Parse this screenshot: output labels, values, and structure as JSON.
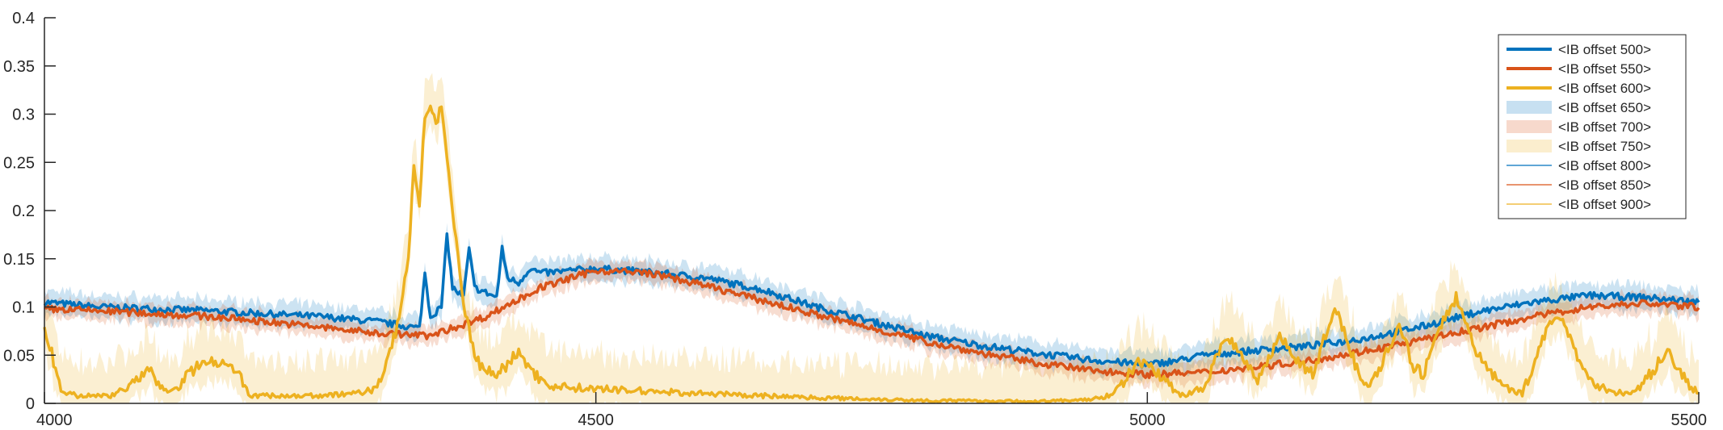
{
  "chart_data": {
    "type": "line",
    "title": "",
    "xlabel": "",
    "ylabel": "",
    "xlim": [
      4000,
      5500
    ],
    "ylim": [
      0,
      0.4
    ],
    "x_ticks": [
      4000,
      4500,
      5000,
      5500
    ],
    "x_tick_labels": [
      "4000",
      "4500",
      "5000",
      "5500"
    ],
    "y_ticks": [
      0,
      0.05,
      0.1,
      0.15,
      0.2,
      0.25,
      0.3,
      0.35,
      0.4
    ],
    "y_tick_labels": [
      "0",
      "0.05",
      "0.1",
      "0.15",
      "0.2",
      "0.25",
      "0.3",
      "0.35",
      "0.4"
    ],
    "grid": false,
    "legend_position": "top-right",
    "colors": {
      "blue": "#0072BD",
      "orange": "#D95319",
      "yellow": "#EDB120"
    },
    "legend": [
      {
        "label": "<IB offset 500>",
        "style": "line-thick",
        "color": "#0072BD"
      },
      {
        "label": "<IB offset 550>",
        "style": "line-thick",
        "color": "#D95319"
      },
      {
        "label": "<IB offset 600>",
        "style": "line-thick",
        "color": "#EDB120"
      },
      {
        "label": "<IB offset 650>",
        "style": "band",
        "color": "#0072BD"
      },
      {
        "label": "<IB offset 700>",
        "style": "band",
        "color": "#D95319"
      },
      {
        "label": "<IB offset 750>",
        "style": "band",
        "color": "#EDB120"
      },
      {
        "label": "<IB offset 800>",
        "style": "line-thin",
        "color": "#0072BD"
      },
      {
        "label": "<IB offset 850>",
        "style": "line-thin",
        "color": "#D95319"
      },
      {
        "label": "<IB offset 900>",
        "style": "line-thin",
        "color": "#EDB120"
      }
    ],
    "series": [
      {
        "color": "#0072BD",
        "x": [
          4000,
          4050,
          4100,
          4150,
          4200,
          4250,
          4300,
          4340,
          4345,
          4350,
          4360,
          4365,
          4370,
          4380,
          4385,
          4390,
          4400,
          4410,
          4415,
          4420,
          4430,
          4440,
          4450,
          4480,
          4500,
          4550,
          4600,
          4650,
          4700,
          4750,
          4800,
          4850,
          4900,
          4950,
          5000,
          5030,
          5050,
          5100,
          5150,
          5200,
          5250,
          5300,
          5350,
          5400,
          5450,
          5500
        ],
        "values": [
          0.105,
          0.1,
          0.098,
          0.096,
          0.093,
          0.09,
          0.085,
          0.078,
          0.135,
          0.09,
          0.1,
          0.175,
          0.12,
          0.11,
          0.16,
          0.12,
          0.115,
          0.11,
          0.16,
          0.13,
          0.125,
          0.14,
          0.135,
          0.138,
          0.14,
          0.136,
          0.13,
          0.118,
          0.1,
          0.085,
          0.07,
          0.06,
          0.052,
          0.045,
          0.04,
          0.045,
          0.05,
          0.055,
          0.06,
          0.068,
          0.08,
          0.095,
          0.105,
          0.112,
          0.11,
          0.105
        ],
        "band": 0.012
      },
      {
        "color": "#D95319",
        "x": [
          4000,
          4050,
          4100,
          4150,
          4200,
          4250,
          4300,
          4350,
          4400,
          4450,
          4500,
          4550,
          4600,
          4650,
          4700,
          4750,
          4800,
          4850,
          4900,
          4950,
          5000,
          5050,
          5100,
          5150,
          5200,
          5250,
          5300,
          5350,
          5400,
          5450,
          5500
        ],
        "values": [
          0.098,
          0.096,
          0.093,
          0.09,
          0.085,
          0.079,
          0.073,
          0.07,
          0.09,
          0.12,
          0.138,
          0.135,
          0.122,
          0.107,
          0.092,
          0.078,
          0.064,
          0.052,
          0.042,
          0.034,
          0.03,
          0.032,
          0.038,
          0.045,
          0.055,
          0.066,
          0.078,
          0.09,
          0.1,
          0.104,
          0.1
        ],
        "band": 0.01
      },
      {
        "color": "#EDB120",
        "x": [
          4000,
          4005,
          4010,
          4015,
          4020,
          4030,
          4060,
          4080,
          4090,
          4095,
          4100,
          4110,
          4120,
          4130,
          4140,
          4160,
          4175,
          4180,
          4185,
          4190,
          4195,
          4200,
          4210,
          4250,
          4280,
          4300,
          4310,
          4320,
          4330,
          4335,
          4340,
          4345,
          4350,
          4355,
          4360,
          4365,
          4370,
          4375,
          4380,
          4385,
          4390,
          4395,
          4400,
          4410,
          4420,
          4430,
          4440,
          4450,
          4460,
          4500,
          4600,
          4700,
          4800,
          4900,
          4950,
          4970,
          4980,
          4990,
          5000,
          5010,
          5030,
          5050,
          5060,
          5070,
          5080,
          5100,
          5110,
          5120,
          5130,
          5150,
          5160,
          5170,
          5180,
          5190,
          5200,
          5210,
          5220,
          5230,
          5240,
          5250,
          5260,
          5270,
          5280,
          5290,
          5300,
          5320,
          5340,
          5350,
          5360,
          5370,
          5380,
          5390,
          5400,
          5420,
          5440,
          5460,
          5470,
          5480,
          5490,
          5500
        ],
        "values": [
          0.075,
          0.06,
          0.035,
          0.012,
          0.01,
          0.008,
          0.008,
          0.02,
          0.03,
          0.035,
          0.025,
          0.012,
          0.015,
          0.03,
          0.04,
          0.045,
          0.035,
          0.02,
          0.01,
          0.008,
          0.008,
          0.008,
          0.008,
          0.008,
          0.01,
          0.015,
          0.04,
          0.08,
          0.15,
          0.25,
          0.2,
          0.3,
          0.31,
          0.29,
          0.31,
          0.25,
          0.2,
          0.15,
          0.1,
          0.08,
          0.05,
          0.04,
          0.035,
          0.03,
          0.04,
          0.055,
          0.035,
          0.025,
          0.018,
          0.015,
          0.01,
          0.006,
          0.003,
          0.002,
          0.004,
          0.01,
          0.025,
          0.04,
          0.045,
          0.03,
          0.008,
          0.015,
          0.04,
          0.07,
          0.06,
          0.025,
          0.045,
          0.075,
          0.05,
          0.03,
          0.065,
          0.1,
          0.07,
          0.035,
          0.02,
          0.035,
          0.06,
          0.08,
          0.04,
          0.03,
          0.06,
          0.09,
          0.11,
          0.08,
          0.05,
          0.02,
          0.01,
          0.04,
          0.07,
          0.09,
          0.08,
          0.05,
          0.025,
          0.012,
          0.01,
          0.035,
          0.055,
          0.04,
          0.02,
          0.01
        ],
        "band": 0.02
      }
    ]
  }
}
